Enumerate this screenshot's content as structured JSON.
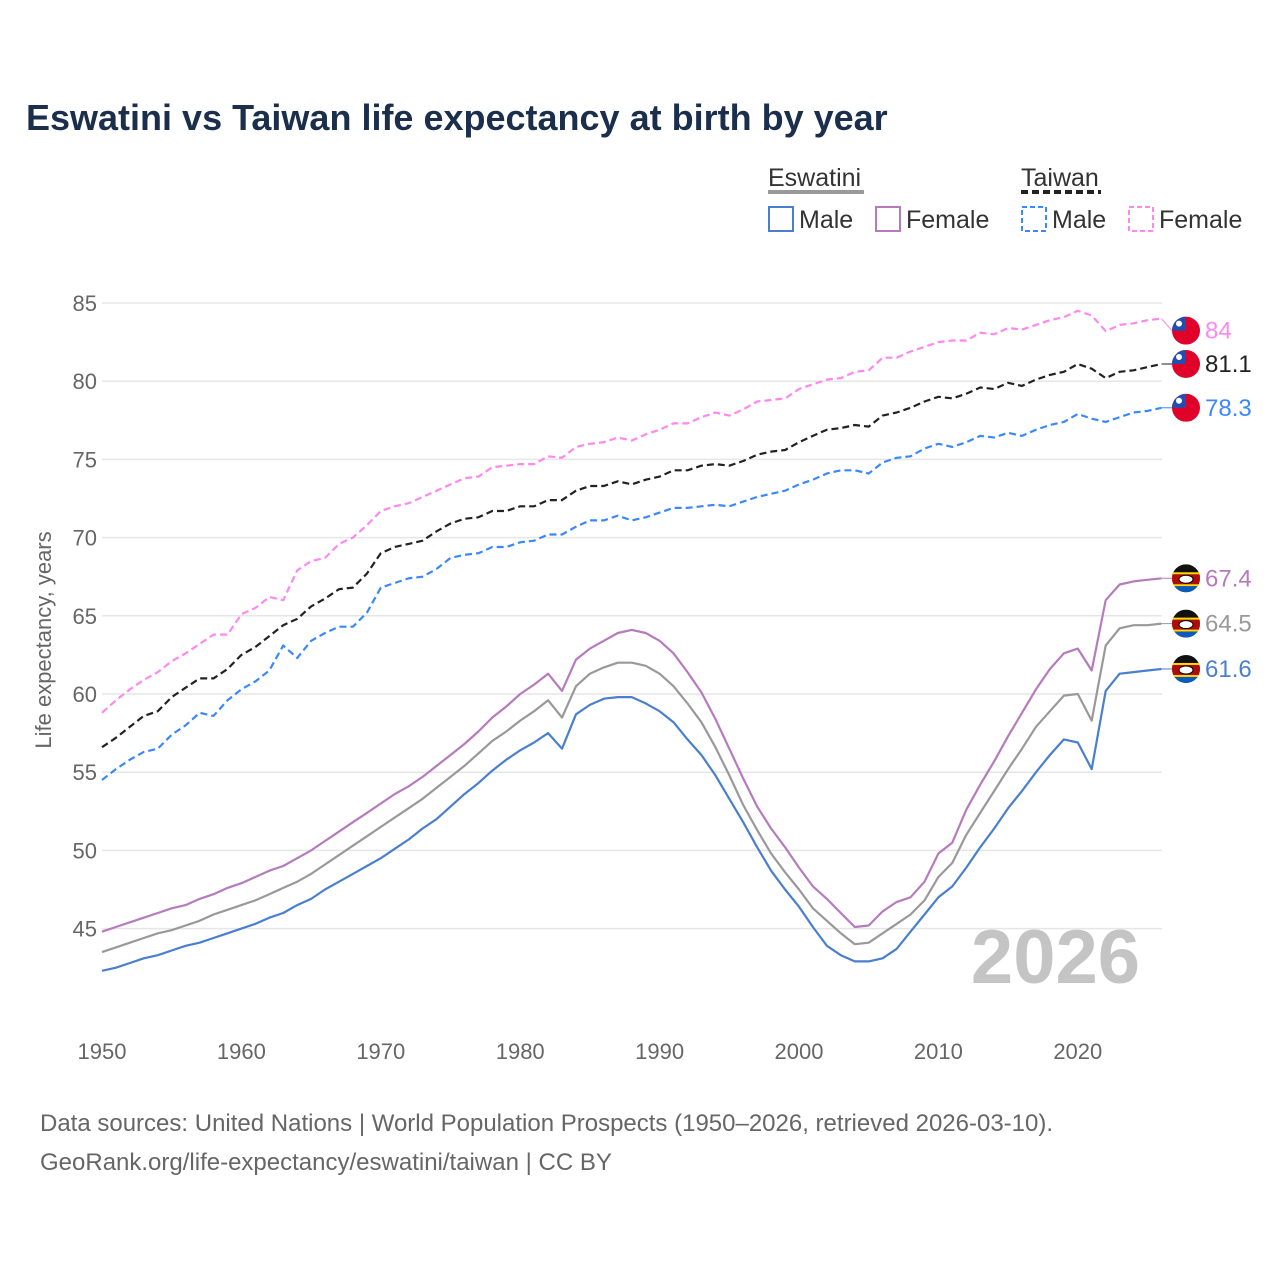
{
  "chart_data": {
    "type": "line",
    "title": "Eswatini vs Taiwan life expectancy at birth by year",
    "xlabel": "",
    "ylabel": "Life expectancy, years",
    "xlim": [
      1950,
      2026
    ],
    "ylim": [
      40,
      85
    ],
    "x_ticks": [
      1950,
      1960,
      1970,
      1980,
      1990,
      2000,
      2010,
      2020
    ],
    "y_ticks": [
      45,
      50,
      55,
      60,
      65,
      70,
      75,
      80,
      85
    ],
    "grid": true,
    "start_year": 1950,
    "year_watermark": "2026",
    "legend": {
      "placement": "top-right",
      "groups": [
        {
          "country": "Eswatini",
          "items": [
            "Male",
            "Female"
          ]
        },
        {
          "country": "Taiwan",
          "items": [
            "Male",
            "Female"
          ]
        }
      ]
    },
    "series": [
      {
        "name": "Taiwan Female",
        "country": "Taiwan",
        "color": "#ff88ee",
        "dashed": true,
        "end_label": "84",
        "flag": "taiwan",
        "values": [
          58.8,
          59.6,
          60.3,
          60.9,
          61.4,
          62.1,
          62.6,
          63.2,
          63.8,
          63.8,
          65.1,
          65.5,
          66.2,
          66.0,
          67.9,
          68.5,
          68.7,
          69.6,
          70.0,
          70.8,
          71.7,
          72.0,
          72.2,
          72.6,
          73.0,
          73.4,
          73.8,
          73.9,
          74.5,
          74.6,
          74.7,
          74.7,
          75.2,
          75.1,
          75.8,
          76.0,
          76.1,
          76.4,
          76.2,
          76.6,
          76.9,
          77.3,
          77.3,
          77.7,
          78.0,
          77.8,
          78.2,
          78.7,
          78.8,
          78.9,
          79.5,
          79.8,
          80.1,
          80.2,
          80.6,
          80.7,
          81.5,
          81.5,
          81.9,
          82.2,
          82.5,
          82.6,
          82.6,
          83.1,
          83.0,
          83.4,
          83.3,
          83.6,
          83.9,
          84.1,
          84.5,
          84.2,
          83.2,
          83.6,
          83.7,
          83.9,
          84.0
        ]
      },
      {
        "name": "Taiwan Total",
        "country": "Taiwan",
        "color": "#222222",
        "dashed": true,
        "end_label": "81.1",
        "flag": "taiwan",
        "values": [
          56.6,
          57.2,
          57.9,
          58.6,
          58.9,
          59.8,
          60.4,
          61.0,
          61.0,
          61.6,
          62.5,
          63.0,
          63.7,
          64.4,
          64.8,
          65.6,
          66.1,
          66.7,
          66.8,
          67.7,
          69.0,
          69.4,
          69.6,
          69.8,
          70.4,
          70.9,
          71.2,
          71.3,
          71.7,
          71.7,
          72.0,
          72.0,
          72.4,
          72.4,
          73.0,
          73.3,
          73.3,
          73.6,
          73.4,
          73.7,
          73.9,
          74.3,
          74.3,
          74.6,
          74.7,
          74.6,
          74.9,
          75.3,
          75.5,
          75.6,
          76.1,
          76.5,
          76.9,
          77.0,
          77.2,
          77.1,
          77.8,
          78.0,
          78.3,
          78.7,
          79.0,
          78.9,
          79.2,
          79.6,
          79.5,
          79.9,
          79.7,
          80.1,
          80.4,
          80.6,
          81.1,
          80.8,
          80.2,
          80.6,
          80.7,
          80.9,
          81.1
        ]
      },
      {
        "name": "Taiwan Male",
        "country": "Taiwan",
        "color": "#3a88fe",
        "dashed": true,
        "end_label": "78.3",
        "flag": "taiwan",
        "values": [
          54.5,
          55.2,
          55.8,
          56.3,
          56.5,
          57.4,
          58.0,
          58.8,
          58.6,
          59.6,
          60.3,
          60.8,
          61.5,
          63.1,
          62.3,
          63.4,
          63.9,
          64.3,
          64.3,
          65.2,
          66.8,
          67.1,
          67.4,
          67.5,
          68.0,
          68.7,
          68.9,
          69.0,
          69.4,
          69.4,
          69.7,
          69.8,
          70.2,
          70.2,
          70.7,
          71.1,
          71.1,
          71.4,
          71.1,
          71.3,
          71.6,
          71.9,
          71.9,
          72.0,
          72.1,
          72.0,
          72.3,
          72.6,
          72.8,
          73.0,
          73.4,
          73.7,
          74.1,
          74.3,
          74.3,
          74.1,
          74.8,
          75.1,
          75.2,
          75.7,
          76.0,
          75.8,
          76.1,
          76.5,
          76.4,
          76.7,
          76.5,
          76.9,
          77.2,
          77.4,
          77.9,
          77.6,
          77.4,
          77.7,
          78.0,
          78.1,
          78.3
        ]
      },
      {
        "name": "Eswatini Female",
        "country": "Eswatini",
        "color": "#b57bbd",
        "dashed": false,
        "end_label": "67.4",
        "flag": "eswatini",
        "values": [
          44.8,
          45.1,
          45.4,
          45.7,
          46.0,
          46.3,
          46.5,
          46.9,
          47.2,
          47.6,
          47.9,
          48.3,
          48.7,
          49.0,
          49.5,
          50.0,
          50.6,
          51.2,
          51.8,
          52.4,
          53.0,
          53.6,
          54.1,
          54.7,
          55.4,
          56.1,
          56.8,
          57.6,
          58.5,
          59.2,
          60.0,
          60.6,
          61.3,
          60.2,
          62.2,
          62.9,
          63.4,
          63.9,
          64.1,
          63.9,
          63.4,
          62.6,
          61.4,
          60.1,
          58.4,
          56.5,
          54.6,
          52.8,
          51.4,
          50.2,
          48.9,
          47.7,
          46.9,
          46.0,
          45.1,
          45.2,
          46.1,
          46.7,
          47.0,
          48.0,
          49.8,
          50.5,
          52.6,
          54.2,
          55.7,
          57.3,
          58.8,
          60.3,
          61.6,
          62.6,
          62.9,
          61.5,
          66.0,
          67.0,
          67.2,
          67.3,
          67.4
        ]
      },
      {
        "name": "Eswatini Total",
        "country": "Eswatini",
        "color": "#999999",
        "dashed": false,
        "end_label": "64.5",
        "flag": "eswatini",
        "values": [
          43.5,
          43.8,
          44.1,
          44.4,
          44.7,
          44.9,
          45.2,
          45.5,
          45.9,
          46.2,
          46.5,
          46.8,
          47.2,
          47.6,
          48.0,
          48.5,
          49.1,
          49.7,
          50.3,
          50.9,
          51.5,
          52.1,
          52.7,
          53.3,
          54.0,
          54.7,
          55.4,
          56.2,
          57.0,
          57.6,
          58.3,
          58.9,
          59.6,
          58.5,
          60.5,
          61.3,
          61.7,
          62.0,
          62.0,
          61.8,
          61.3,
          60.5,
          59.4,
          58.2,
          56.6,
          54.8,
          52.9,
          51.3,
          49.8,
          48.6,
          47.5,
          46.3,
          45.5,
          44.7,
          44.0,
          44.1,
          44.7,
          45.3,
          45.9,
          46.8,
          48.3,
          49.2,
          51.0,
          52.4,
          53.8,
          55.2,
          56.5,
          57.9,
          58.9,
          59.9,
          60.0,
          58.3,
          63.1,
          64.2,
          64.4,
          64.4,
          64.5
        ]
      },
      {
        "name": "Eswatini Male",
        "country": "Eswatini",
        "color": "#4a7fcf",
        "dashed": false,
        "end_label": "61.6",
        "flag": "eswatini",
        "values": [
          42.3,
          42.5,
          42.8,
          43.1,
          43.3,
          43.6,
          43.9,
          44.1,
          44.4,
          44.7,
          45.0,
          45.3,
          45.7,
          46.0,
          46.5,
          46.9,
          47.5,
          48.0,
          48.5,
          49.0,
          49.5,
          50.1,
          50.7,
          51.4,
          52.0,
          52.8,
          53.6,
          54.3,
          55.1,
          55.8,
          56.4,
          56.9,
          57.5,
          56.5,
          58.7,
          59.3,
          59.7,
          59.8,
          59.8,
          59.4,
          58.9,
          58.2,
          57.1,
          56.1,
          54.8,
          53.3,
          51.8,
          50.2,
          48.7,
          47.5,
          46.4,
          45.1,
          43.9,
          43.3,
          42.9,
          42.9,
          43.1,
          43.7,
          44.8,
          45.9,
          47.0,
          47.7,
          48.9,
          50.2,
          51.4,
          52.7,
          53.8,
          55.0,
          56.1,
          57.1,
          56.9,
          55.2,
          60.2,
          61.3,
          61.4,
          61.5,
          61.6
        ]
      }
    ],
    "sources": [
      "Data sources: United Nations | World Population Prospects (1950–2026, retrieved 2026-03-10).",
      "GeoRank.org/life-expectancy/eswatini/taiwan | CC BY"
    ]
  }
}
